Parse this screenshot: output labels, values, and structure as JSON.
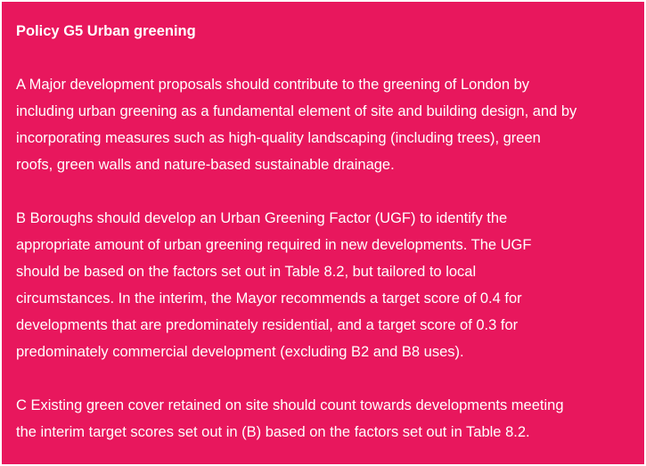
{
  "policy": {
    "title": "Policy G5 Urban greening",
    "paragraphs": [
      {
        "lines": [
          "A Major development proposals should contribute to the greening of London by",
          "including urban greening as a fundamental element of site and building design, and by",
          "incorporating measures such as high-quality landscaping (including trees), green",
          "roofs, green walls and nature-based sustainable drainage."
        ]
      },
      {
        "lines": [
          "B Boroughs should develop an Urban Greening Factor (UGF) to identify the",
          "appropriate amount of urban greening required in new developments. The UGF",
          "should be based on the factors set out in Table 8.2, but tailored to local",
          "circumstances. In the interim, the Mayor recommends a target score of 0.4 for",
          "developments that are predominately residential, and a target score of 0.3 for",
          "predominately commercial development (excluding B2 and B8 uses)."
        ]
      },
      {
        "lines": [
          "C Existing green cover retained on site should count towards developments meeting",
          "the interim target scores set out in (B) based on the factors set out in Table 8.2."
        ]
      }
    ]
  }
}
